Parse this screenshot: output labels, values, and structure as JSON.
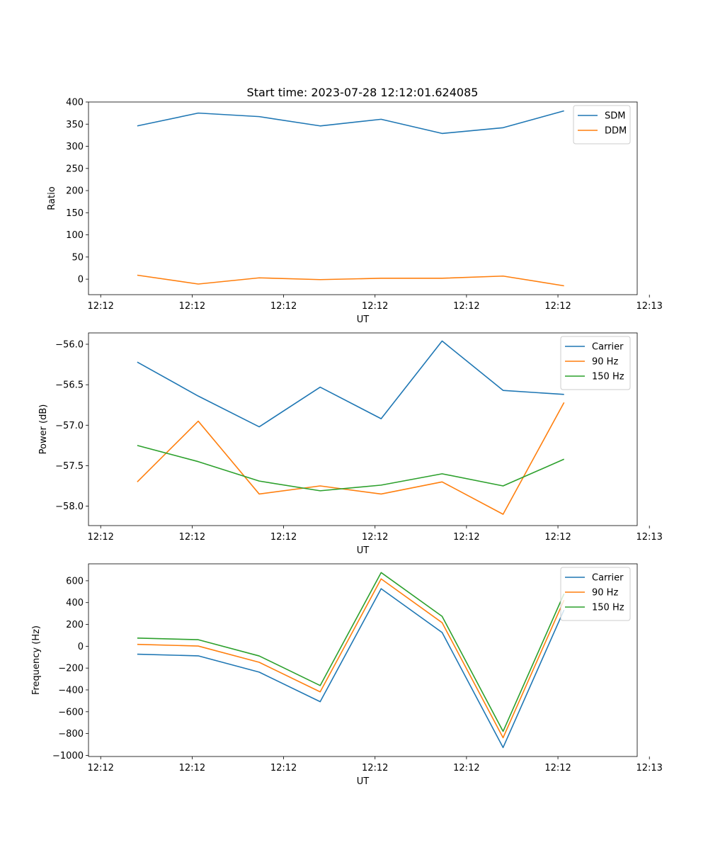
{
  "figure_title": "Start time: 2023-07-28 12:12:01.624085",
  "chart_data": [
    {
      "type": "line",
      "title": "Start time: 2023-07-28 12:12:01.624085",
      "xlabel": "UT",
      "ylabel": "Ratio",
      "x": [
        1,
        2,
        3,
        4,
        5,
        6,
        7,
        8
      ],
      "xlim": [
        0.2,
        9.2
      ],
      "ylim": [
        -35,
        400
      ],
      "x_ticks": [
        0.4,
        1.9,
        3.4,
        4.9,
        6.4,
        7.9,
        9.4
      ],
      "x_tick_labels": [
        "12:12",
        "12:12",
        "12:12",
        "12:12",
        "12:12",
        "12:12",
        "12:13"
      ],
      "y_ticks": [
        0,
        50,
        100,
        150,
        200,
        250,
        300,
        350,
        400
      ],
      "y_tick_labels": [
        "0",
        "50",
        "100",
        "150",
        "200",
        "250",
        "300",
        "350",
        "400"
      ],
      "legend": "upper right",
      "series": [
        {
          "name": "SDM",
          "color": "#1f77b4",
          "values": [
            346,
            375,
            367,
            346,
            361,
            329,
            342,
            380
          ]
        },
        {
          "name": "DDM",
          "color": "#ff7f0e",
          "values": [
            9,
            -11,
            3,
            -1,
            2,
            2,
            7,
            -15
          ]
        }
      ]
    },
    {
      "type": "line",
      "xlabel": "UT",
      "ylabel": "Power (dB)",
      "x": [
        1,
        2,
        3,
        4,
        5,
        6,
        7,
        8
      ],
      "xlim": [
        0.2,
        9.2
      ],
      "ylim": [
        -58.24,
        -55.86
      ],
      "x_ticks": [
        0.4,
        1.9,
        3.4,
        4.9,
        6.4,
        7.9,
        9.4
      ],
      "x_tick_labels": [
        "12:12",
        "12:12",
        "12:12",
        "12:12",
        "12:12",
        "12:12",
        "12:13"
      ],
      "y_ticks": [
        -58.0,
        -57.5,
        -57.0,
        -56.5,
        -56.0
      ],
      "y_tick_labels": [
        "−58.0",
        "−57.5",
        "−57.0",
        "−56.5",
        "−56.0"
      ],
      "legend": "upper right",
      "series": [
        {
          "name": "Carrier",
          "color": "#1f77b4",
          "values": [
            -56.22,
            -56.64,
            -57.02,
            -56.53,
            -56.92,
            -55.96,
            -56.57,
            -56.62
          ]
        },
        {
          "name": "90 Hz",
          "color": "#ff7f0e",
          "values": [
            -57.7,
            -56.95,
            -57.85,
            -57.75,
            -57.85,
            -57.7,
            -58.1,
            -56.72
          ]
        },
        {
          "name": "150 Hz",
          "color": "#2ca02c",
          "values": [
            -57.25,
            -57.45,
            -57.69,
            -57.81,
            -57.74,
            -57.6,
            -57.75,
            -57.42
          ]
        }
      ]
    },
    {
      "type": "line",
      "xlabel": "UT",
      "ylabel": "Frequency (Hz)",
      "x": [
        1,
        2,
        3,
        4,
        5,
        6,
        7,
        8
      ],
      "xlim": [
        0.2,
        9.2
      ],
      "ylim": [
        -1010,
        755
      ],
      "x_ticks": [
        0.4,
        1.9,
        3.4,
        4.9,
        6.4,
        7.9,
        9.4
      ],
      "x_tick_labels": [
        "12:12",
        "12:12",
        "12:12",
        "12:12",
        "12:12",
        "12:12",
        "12:13"
      ],
      "y_ticks": [
        -1000,
        -800,
        -600,
        -400,
        -200,
        0,
        200,
        400,
        600
      ],
      "y_tick_labels": [
        "−1000",
        "−800",
        "−600",
        "−400",
        "−200",
        "0",
        "200",
        "400",
        "600"
      ],
      "legend": "upper right",
      "series": [
        {
          "name": "Carrier",
          "color": "#1f77b4",
          "values": [
            -73,
            -88,
            -237,
            -508,
            527,
            126,
            -928,
            333
          ]
        },
        {
          "name": "90 Hz",
          "color": "#ff7f0e",
          "values": [
            17,
            2,
            -147,
            -418,
            617,
            216,
            -838,
            423
          ]
        },
        {
          "name": "150 Hz",
          "color": "#2ca02c",
          "values": [
            75,
            60,
            -89,
            -360,
            675,
            274,
            -780,
            481
          ]
        }
      ]
    }
  ]
}
